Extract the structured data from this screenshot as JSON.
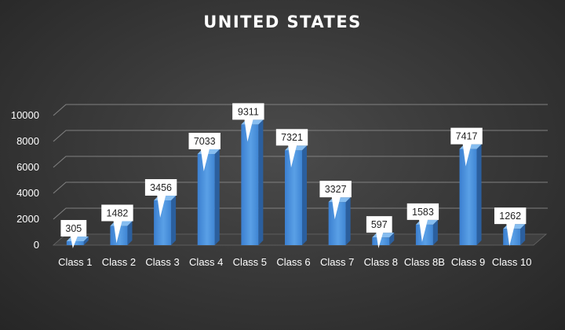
{
  "chart_data": {
    "type": "bar",
    "title": "UNITED STATES",
    "xlabel": "",
    "ylabel": "",
    "categories": [
      "Class 1",
      "Class 2",
      "Class 3",
      "Class 4",
      "Class 5",
      "Class 6",
      "Class 7",
      "Class 8",
      "Class 8B",
      "Class 9",
      "Class 10"
    ],
    "values": [
      305,
      1482,
      3456,
      7033,
      9311,
      7321,
      3327,
      597,
      1583,
      7417,
      1262
    ],
    "ylim": [
      0,
      10000
    ],
    "yticks": [
      0,
      2000,
      4000,
      6000,
      8000,
      10000
    ],
    "grid": true,
    "legend": "none",
    "style": "3d-column",
    "colors": {
      "bar_front": "#4a90d9",
      "bar_side": "#2b5f9e",
      "bar_top": "#86bdf0",
      "label_bg": "#ffffff",
      "label_text": "#222222",
      "axis_text": "#ffffff",
      "grid": "#808080"
    }
  }
}
